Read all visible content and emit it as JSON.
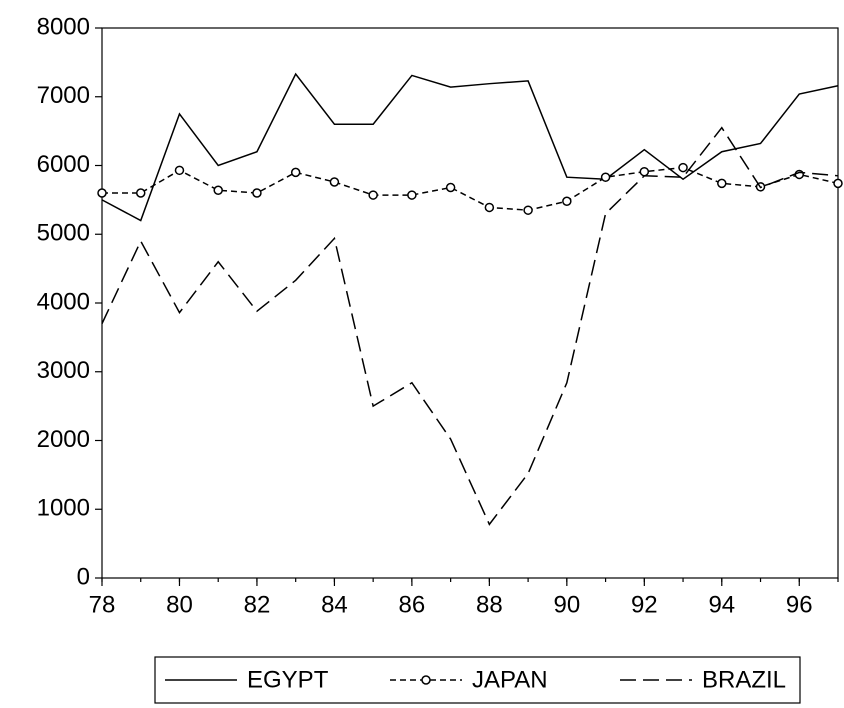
{
  "chart_data": {
    "type": "line",
    "x": [
      78,
      79,
      80,
      81,
      82,
      83,
      84,
      85,
      86,
      87,
      88,
      89,
      90,
      91,
      92,
      93,
      94,
      95,
      96,
      97
    ],
    "xlim": [
      78,
      97
    ],
    "xticks": [
      78,
      80,
      82,
      84,
      86,
      88,
      90,
      92,
      94,
      96
    ],
    "ylim": [
      0,
      8000
    ],
    "yticks": [
      0,
      1000,
      2000,
      3000,
      4000,
      5000,
      6000,
      7000,
      8000
    ],
    "grid": false,
    "legend": "bottom",
    "series": [
      {
        "name": "EGYPT",
        "color": "#000000",
        "dash": "solid",
        "marker": "none",
        "values": [
          5500,
          5200,
          6750,
          6000,
          6200,
          7330,
          6600,
          6600,
          7310,
          7140,
          7190,
          7230,
          5830,
          5800,
          6230,
          5800,
          6200,
          6320,
          7040,
          7160
        ]
      },
      {
        "name": "JAPAN",
        "color": "#000000",
        "dash": "short",
        "marker": "circle",
        "values": [
          5600,
          5600,
          5930,
          5640,
          5600,
          5900,
          5760,
          5570,
          5570,
          5680,
          5390,
          5350,
          5480,
          5830,
          5910,
          5970,
          5740,
          5690,
          5870,
          5740
        ]
      },
      {
        "name": "BRAZIL",
        "color": "#000000",
        "dash": "long",
        "marker": "none",
        "values": [
          3700,
          4900,
          3860,
          4600,
          3880,
          4330,
          4940,
          2500,
          2840,
          2020,
          780,
          1520,
          2840,
          5300,
          5850,
          5830,
          6550,
          5680,
          5900,
          5850
        ]
      }
    ]
  }
}
